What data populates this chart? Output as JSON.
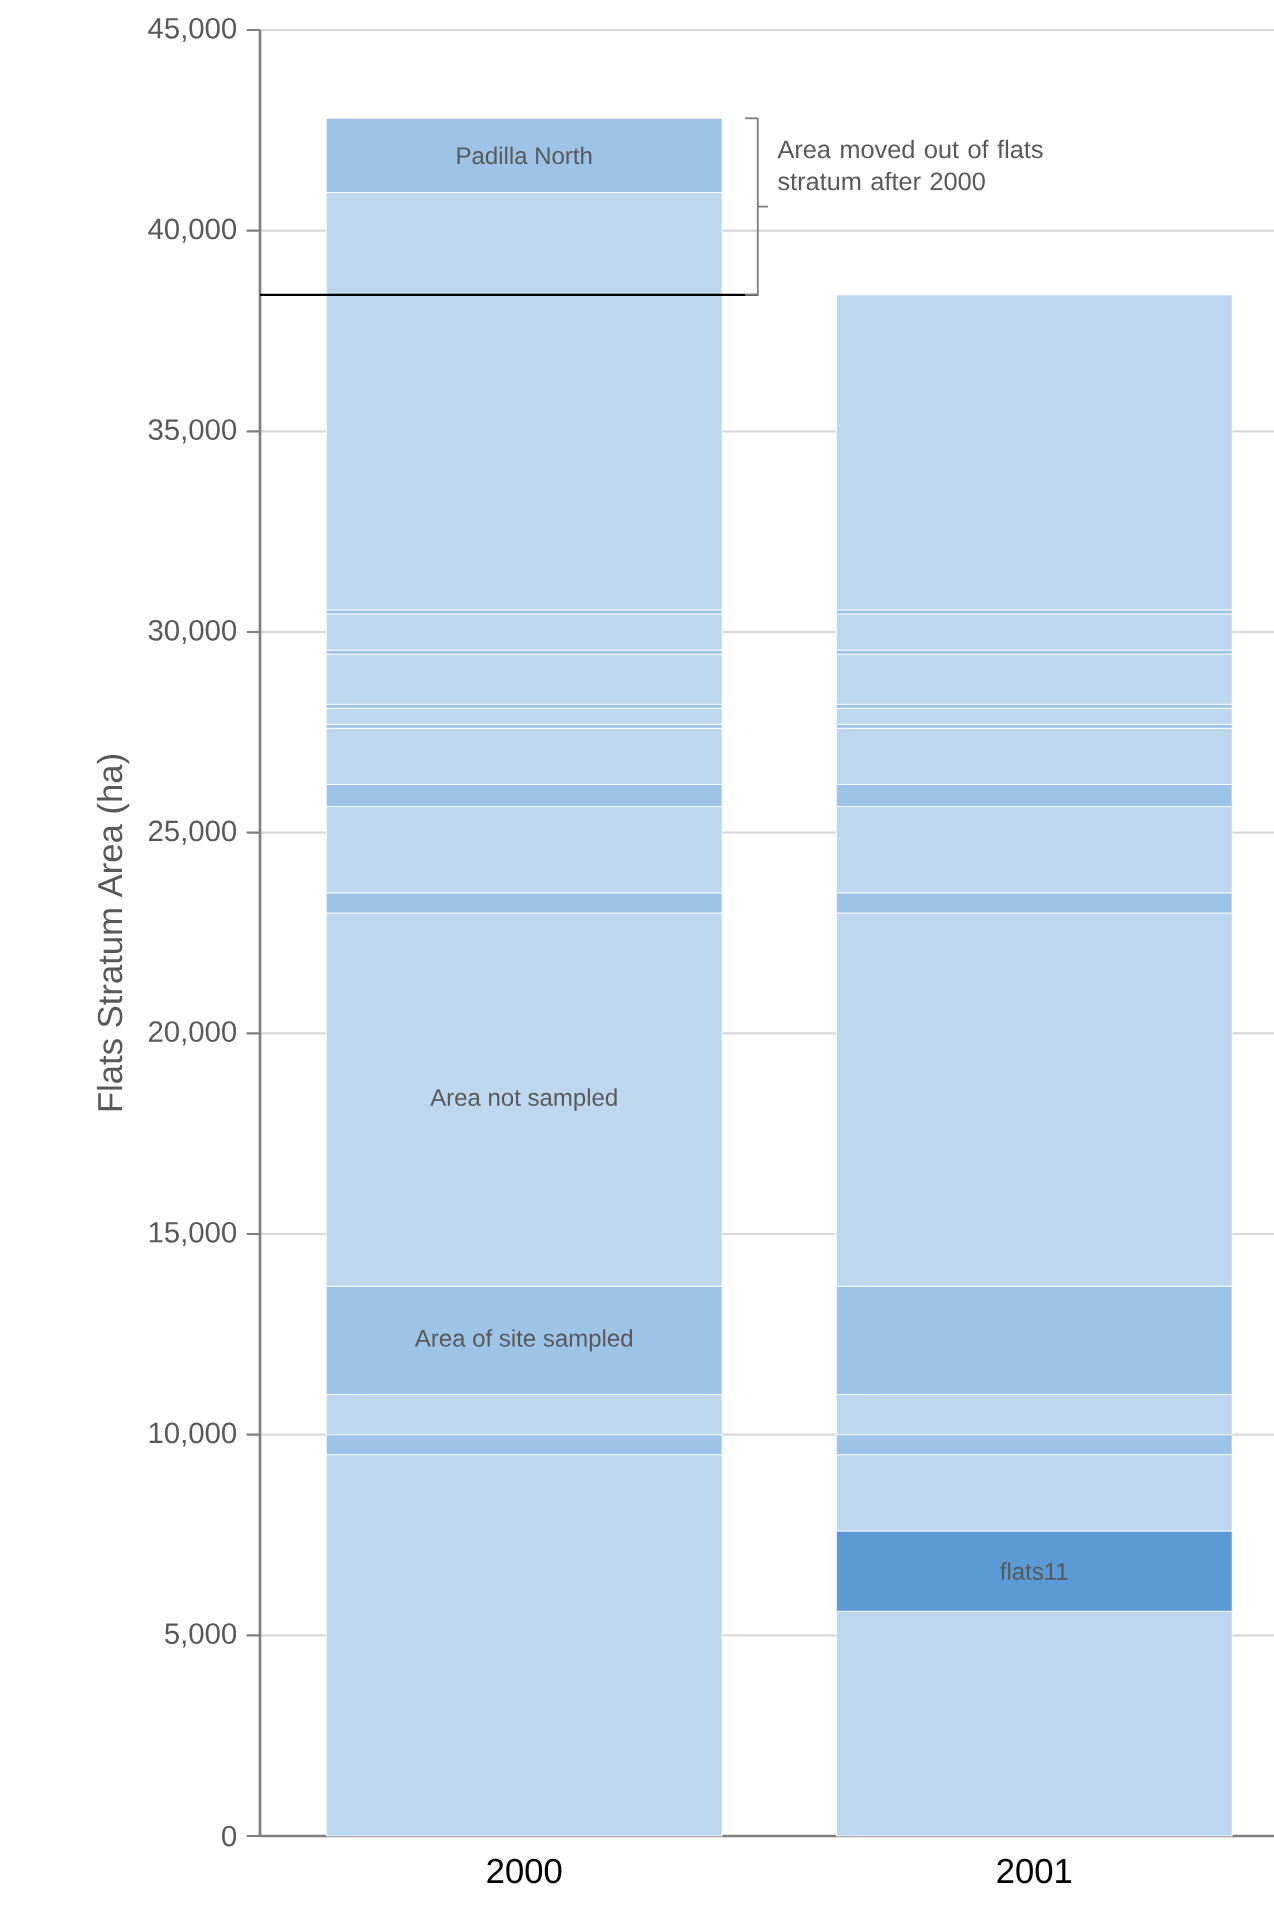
{
  "chart_data": {
    "type": "bar",
    "stacked": true,
    "grid": "y",
    "ylabel": "Flats Stratum Area (ha)",
    "categories": [
      "2000",
      "2001"
    ],
    "ylim": [
      0,
      45000
    ],
    "yticks": [
      {
        "value": 0,
        "label": "0"
      },
      {
        "value": 5000,
        "label": "5,000"
      },
      {
        "value": 10000,
        "label": "10,000"
      },
      {
        "value": 15000,
        "label": "15,000"
      },
      {
        "value": 20000,
        "label": "20,000"
      },
      {
        "value": 25000,
        "label": "25,000"
      },
      {
        "value": 30000,
        "label": "30,000"
      },
      {
        "value": 35000,
        "label": "35,000"
      },
      {
        "value": 40000,
        "label": "40,000"
      },
      {
        "value": 45000,
        "label": "45,000"
      }
    ],
    "series": [
      {
        "color": "#bdd7ee",
        "values": [
          9500,
          5600
        ]
      },
      {
        "name": "flats11",
        "color": "#5b9bd5",
        "values": [
          null,
          2000
        ]
      },
      {
        "color": "#bdd7ee",
        "values": [
          null,
          1900
        ]
      },
      {
        "color": "#9dc3e6",
        "values": [
          500,
          500
        ]
      },
      {
        "color": "#bdd7ee",
        "values": [
          1000,
          1000
        ]
      },
      {
        "name": "Area of site sampled",
        "color": "#9dc3e6",
        "values": [
          2700,
          2700
        ]
      },
      {
        "name": "Area not sampled",
        "color": "#bdd7ee",
        "values": [
          9300,
          9300
        ]
      },
      {
        "color": "#9dc3e6",
        "values": [
          500,
          500
        ]
      },
      {
        "color": "#bdd7ee",
        "values": [
          2150,
          2150
        ]
      },
      {
        "color": "#9dc3e6",
        "values": [
          550,
          550
        ]
      },
      {
        "color": "#bdd7ee",
        "values": [
          1400,
          1400
        ]
      },
      {
        "color": "#9dc3e6",
        "values": [
          100,
          100
        ]
      },
      {
        "color": "#bdd7ee",
        "values": [
          400,
          400
        ]
      },
      {
        "color": "#9dc3e6",
        "values": [
          100,
          100
        ]
      },
      {
        "color": "#bdd7ee",
        "values": [
          1250,
          1250
        ]
      },
      {
        "color": "#9dc3e6",
        "values": [
          100,
          100
        ]
      },
      {
        "color": "#bdd7ee",
        "values": [
          900,
          900
        ]
      },
      {
        "color": "#9dc3e6",
        "values": [
          100,
          100
        ]
      },
      {
        "color": "#bdd7ee",
        "values": [
          10400,
          7850
        ]
      },
      {
        "name": "Padilla North",
        "color": "#9dc3e6",
        "values": [
          1850,
          null
        ]
      }
    ],
    "ref_lines": [
      {
        "axis": "y",
        "value": 38400,
        "label": "Area moved out of flats stratum after 2000",
        "color": "#000000"
      }
    ]
  }
}
